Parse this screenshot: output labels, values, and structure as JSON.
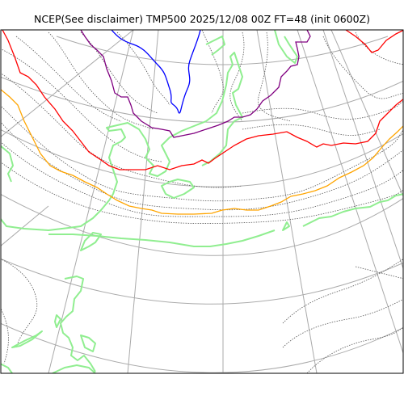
{
  "title": "NCEP(See disclaimer) TMP500 2025/12/08 00Z FT=48 (init 0600Z)",
  "map": {
    "projection": "polar-stereographic",
    "graticule_color": "#aaaaaa",
    "frame_color": "#000000",
    "layers": [
      {
        "name": "coastline",
        "color": "#90ee90"
      },
      {
        "name": "temperature-contours-minor",
        "color": "#555555",
        "style": "dotted"
      },
      {
        "name": "isotherm-orange",
        "color": "#ffa500"
      },
      {
        "name": "isotherm-red",
        "color": "#ff0000"
      },
      {
        "name": "isotherm-purple",
        "color": "#800080"
      },
      {
        "name": "isotherm-blue",
        "color": "#0000ff"
      }
    ]
  }
}
